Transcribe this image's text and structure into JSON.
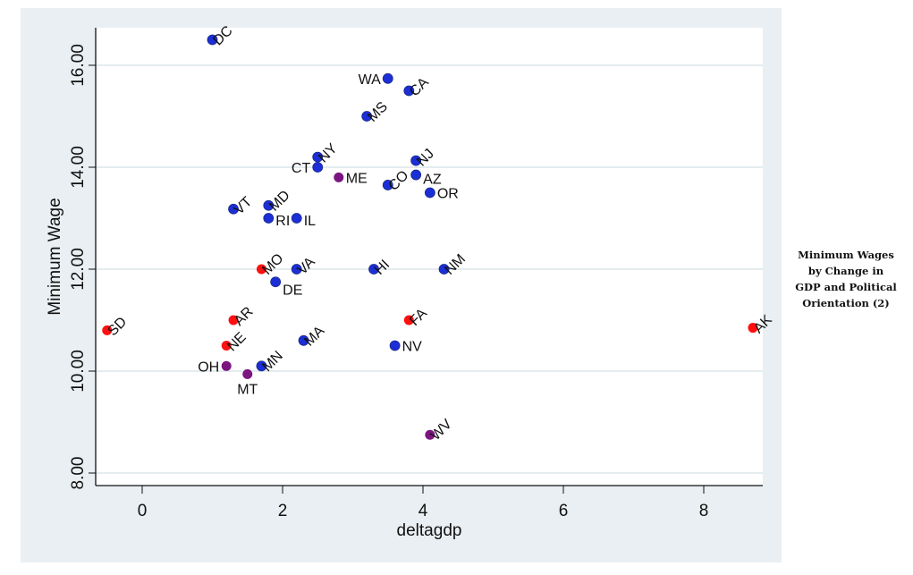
{
  "chart_data": {
    "type": "scatter",
    "title": "",
    "xlabel": "deltagdp",
    "ylabel": "Minimum Wage",
    "xlim": [
      -0.7,
      8.9
    ],
    "ylim": [
      7.7,
      16.8
    ],
    "xticks": [
      0,
      2,
      4,
      6,
      8
    ],
    "xtick_labels": [
      "0",
      "2",
      "4",
      "6",
      "8"
    ],
    "yticks": [
      8,
      10,
      12,
      14,
      16
    ],
    "ytick_labels": [
      "8.00",
      "10.00",
      "12.00",
      "14.00",
      "16.00"
    ],
    "grid": "horizontal",
    "colors": {
      "blue": "#1c2fd6",
      "red": "#ff1010",
      "purple": "#7b1580"
    },
    "points": [
      {
        "label": "DC",
        "x": 1.0,
        "y": 16.5,
        "color": "blue"
      },
      {
        "label": "WA",
        "x": 3.5,
        "y": 15.74,
        "color": "blue"
      },
      {
        "label": "CA",
        "x": 3.8,
        "y": 15.5,
        "color": "blue"
      },
      {
        "label": "MS",
        "x": 3.2,
        "y": 15.0,
        "color": "blue"
      },
      {
        "label": "NY",
        "x": 2.5,
        "y": 14.2,
        "color": "blue"
      },
      {
        "label": "CT",
        "x": 2.5,
        "y": 14.0,
        "color": "blue"
      },
      {
        "label": "ME",
        "x": 2.8,
        "y": 13.8,
        "color": "purple"
      },
      {
        "label": "NJ",
        "x": 3.9,
        "y": 14.13,
        "color": "blue"
      },
      {
        "label": "AZ",
        "x": 3.9,
        "y": 13.85,
        "color": "blue"
      },
      {
        "label": "CO",
        "x": 3.5,
        "y": 13.65,
        "color": "blue"
      },
      {
        "label": "OR",
        "x": 4.1,
        "y": 13.5,
        "color": "blue"
      },
      {
        "label": "VT",
        "x": 1.3,
        "y": 13.18,
        "color": "blue"
      },
      {
        "label": "MD",
        "x": 1.8,
        "y": 13.25,
        "color": "blue"
      },
      {
        "label": "RI",
        "x": 1.8,
        "y": 13.0,
        "color": "blue"
      },
      {
        "label": "IL",
        "x": 2.2,
        "y": 13.0,
        "color": "blue"
      },
      {
        "label": "MO",
        "x": 1.7,
        "y": 12.0,
        "color": "red"
      },
      {
        "label": "VA",
        "x": 2.2,
        "y": 12.0,
        "color": "blue"
      },
      {
        "label": "DE",
        "x": 1.9,
        "y": 11.75,
        "color": "blue"
      },
      {
        "label": "HI",
        "x": 3.3,
        "y": 12.0,
        "color": "blue"
      },
      {
        "label": "NM",
        "x": 4.3,
        "y": 12.0,
        "color": "blue"
      },
      {
        "label": "SD",
        "x": -0.5,
        "y": 10.8,
        "color": "red"
      },
      {
        "label": "AK",
        "x": 8.7,
        "y": 10.85,
        "color": "red"
      },
      {
        "label": "AR",
        "x": 1.3,
        "y": 11.0,
        "color": "red"
      },
      {
        "label": "FA",
        "x": 3.8,
        "y": 11.0,
        "color": "red"
      },
      {
        "label": "NE",
        "x": 1.2,
        "y": 10.5,
        "color": "red"
      },
      {
        "label": "NV",
        "x": 3.6,
        "y": 10.5,
        "color": "blue"
      },
      {
        "label": "MA",
        "x": 2.3,
        "y": 10.6,
        "color": "blue"
      },
      {
        "label": "OH",
        "x": 1.2,
        "y": 10.1,
        "color": "purple"
      },
      {
        "label": "MN",
        "x": 1.7,
        "y": 10.1,
        "color": "blue"
      },
      {
        "label": "MT",
        "x": 1.5,
        "y": 9.94,
        "color": "purple"
      },
      {
        "label": "WV",
        "x": 4.1,
        "y": 8.75,
        "color": "purple"
      }
    ]
  },
  "side_note": {
    "lines": [
      "Minimum Wages",
      "by Change in",
      "GDP and Political",
      "Orientation (2)"
    ]
  }
}
